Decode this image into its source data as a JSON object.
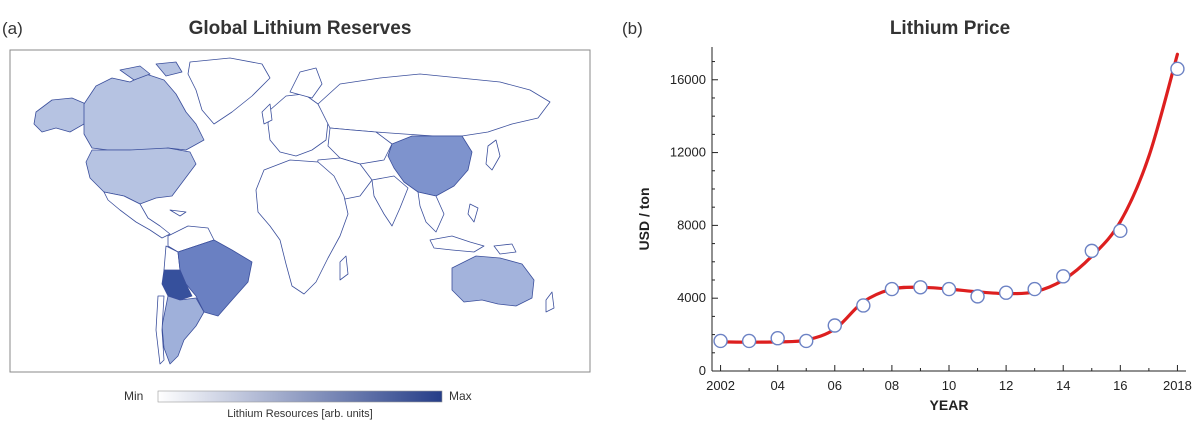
{
  "panel_a": {
    "letter": "(a)",
    "title": "Global Lithium Reserves",
    "colorbar": {
      "min_label": "Min",
      "max_label": "Max",
      "title": "Lithium Resources [arb. units]",
      "min_color": "#ffffff",
      "max_color": "#253d88"
    },
    "region_colors": {
      "north_america": "#b6c3e2",
      "china": "#7e93cd",
      "australia": "#a3b3dc",
      "brazil": "#6a80c2",
      "bolivia_chile": "#36509c",
      "argentina": "#9fb0da"
    }
  },
  "panel_b": {
    "letter": "(b)",
    "title": "Lithium Price"
  },
  "chart_data": [
    {
      "type": "map",
      "title": "Global Lithium Reserves",
      "colorbar_label": "Lithium Resources [arb. units]",
      "colorbar_range": [
        "Min",
        "Max"
      ]
    },
    {
      "type": "scatter",
      "title": "Lithium Price",
      "xlabel": "YEAR",
      "ylabel": "USD / ton",
      "xlim": [
        2001.7,
        2018.3
      ],
      "ylim": [
        0,
        17800
      ],
      "x_ticks": [
        2002,
        2004,
        2006,
        2008,
        2010,
        2012,
        2014,
        2016,
        2018
      ],
      "x_tick_labels": [
        "2002",
        "04",
        "06",
        "08",
        "10",
        "12",
        "14",
        "16",
        "2018"
      ],
      "y_ticks": [
        0,
        4000,
        8000,
        12000,
        16000
      ],
      "y_tick_labels": [
        "0",
        "4000",
        "8000",
        "12000",
        "16000"
      ],
      "points": [
        {
          "x": 2002,
          "y": 1650
        },
        {
          "x": 2003,
          "y": 1650
        },
        {
          "x": 2004,
          "y": 1800
        },
        {
          "x": 2005,
          "y": 1650
        },
        {
          "x": 2006,
          "y": 2500
        },
        {
          "x": 2007,
          "y": 3600
        },
        {
          "x": 2008,
          "y": 4500
        },
        {
          "x": 2009,
          "y": 4600
        },
        {
          "x": 2010,
          "y": 4500
        },
        {
          "x": 2011,
          "y": 4100
        },
        {
          "x": 2012,
          "y": 4300
        },
        {
          "x": 2013,
          "y": 4500
        },
        {
          "x": 2014,
          "y": 5200
        },
        {
          "x": 2015,
          "y": 6600
        },
        {
          "x": 2016,
          "y": 7700
        },
        {
          "x": 2018,
          "y": 16600
        }
      ],
      "fit_curve": [
        {
          "x": 2002,
          "y": 1600
        },
        {
          "x": 2003,
          "y": 1580
        },
        {
          "x": 2004,
          "y": 1600
        },
        {
          "x": 2005,
          "y": 1700
        },
        {
          "x": 2006,
          "y": 2300
        },
        {
          "x": 2007,
          "y": 3800
        },
        {
          "x": 2008,
          "y": 4500
        },
        {
          "x": 2009,
          "y": 4600
        },
        {
          "x": 2010,
          "y": 4500
        },
        {
          "x": 2011,
          "y": 4350
        },
        {
          "x": 2012,
          "y": 4250
        },
        {
          "x": 2013,
          "y": 4350
        },
        {
          "x": 2014,
          "y": 5000
        },
        {
          "x": 2015,
          "y": 6300
        },
        {
          "x": 2016,
          "y": 8200
        },
        {
          "x": 2017,
          "y": 11800
        },
        {
          "x": 2018,
          "y": 17400
        }
      ],
      "point_fill": "#ffffff",
      "point_stroke": "#6c82c4",
      "curve_color": "#dd1f1f"
    }
  ]
}
